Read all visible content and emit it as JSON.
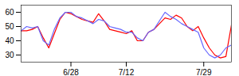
{
  "chart_data": {
    "type": "line",
    "categories": [
      null,
      null,
      null,
      null,
      null,
      null,
      null,
      null,
      null,
      "6/28",
      null,
      null,
      null,
      null,
      null,
      null,
      null,
      null,
      null,
      "7/12",
      null,
      null,
      null,
      null,
      null,
      null,
      null,
      null,
      null,
      null,
      null,
      null,
      null,
      "7/29",
      null,
      null,
      null,
      null,
      null
    ],
    "series": [
      {
        "color": "#ff0000",
        "values": [
          47,
          47,
          48,
          50,
          42,
          35,
          45,
          55,
          60,
          59,
          57,
          55,
          54,
          53,
          59,
          54,
          48,
          47,
          46,
          45,
          47,
          40,
          40,
          46,
          48,
          52,
          56,
          55,
          58,
          56,
          50,
          47,
          50,
          42,
          35,
          30,
          28,
          29,
          51
        ]
      },
      {
        "color": "#6666ff",
        "values": [
          47,
          50,
          49,
          50,
          40,
          37,
          48,
          56,
          60,
          60,
          57,
          56,
          54,
          52,
          55,
          54,
          50,
          49,
          48,
          46,
          46,
          42,
          40,
          46,
          48,
          54,
          60,
          57,
          55,
          52,
          50,
          48,
          46,
          35,
          30,
          28,
          30,
          35,
          37
        ]
      }
    ],
    "ylim": [
      25,
      65
    ],
    "yticks": [
      30,
      40,
      50,
      60
    ],
    "grid": false
  }
}
